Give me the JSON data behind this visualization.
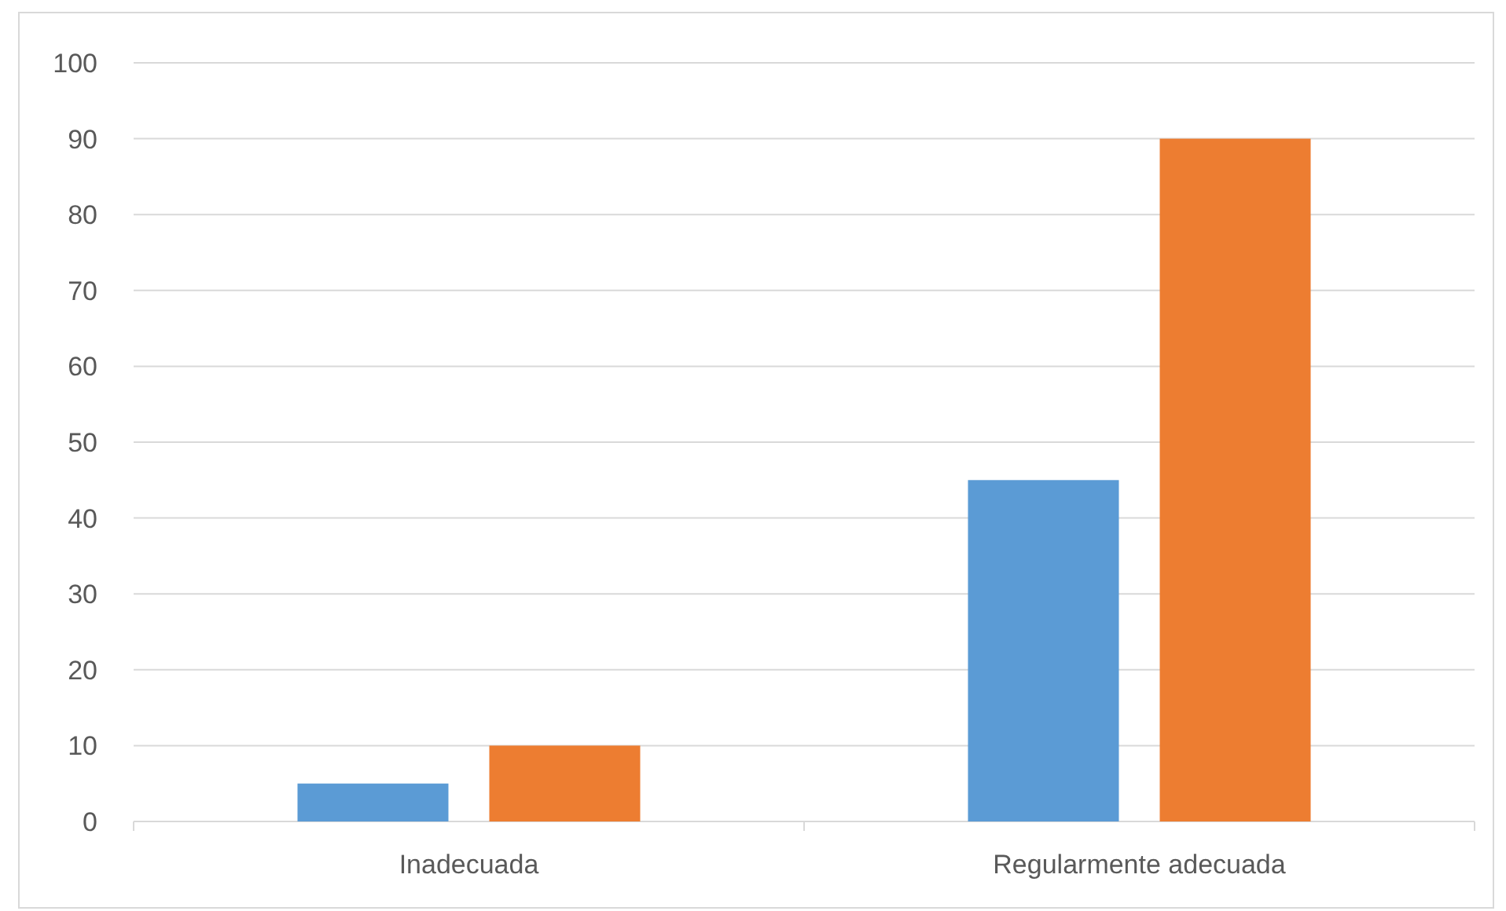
{
  "chart_data": {
    "type": "bar",
    "categories": [
      "Inadecuada",
      "Regularmente adecuada"
    ],
    "series": [
      {
        "color": "#5b9bd5",
        "values": [
          5,
          45
        ]
      },
      {
        "color": "#ed7d31",
        "values": [
          10,
          90
        ]
      }
    ],
    "ylim": [
      0,
      100
    ],
    "yticks": [
      0,
      10,
      20,
      30,
      40,
      50,
      60,
      70,
      80,
      90,
      100
    ],
    "grid": "y"
  }
}
